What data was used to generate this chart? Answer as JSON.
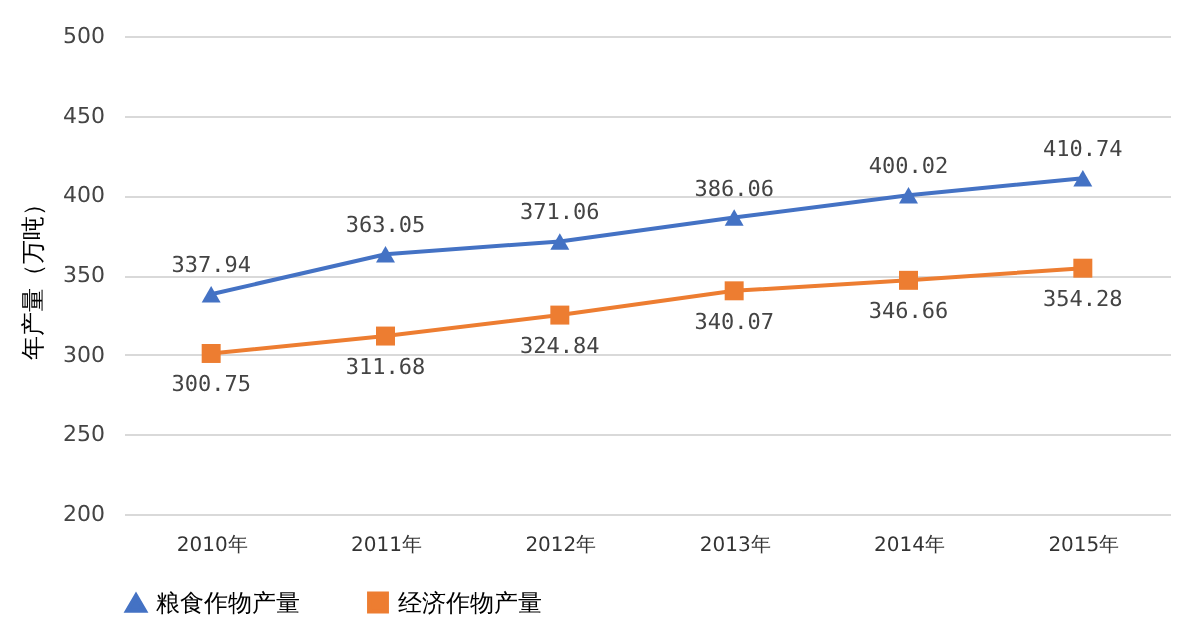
{
  "chart_data": {
    "type": "line",
    "ylabel": "年产量（万吨）",
    "categories": [
      "2010年",
      "2011年",
      "2012年",
      "2013年",
      "2014年",
      "2015年"
    ],
    "series": [
      {
        "name": "粮食作物产量",
        "color": "#4472c4",
        "marker": "triangle",
        "values": [
          337.94,
          363.05,
          371.06,
          386.06,
          400.02,
          410.74
        ]
      },
      {
        "name": "经济作物产量",
        "color": "#ed7d31",
        "marker": "square",
        "values": [
          300.75,
          311.68,
          324.84,
          340.07,
          346.66,
          354.28
        ]
      }
    ],
    "ylim": [
      200,
      500
    ],
    "yticks": [
      200,
      250,
      300,
      350,
      400,
      450,
      500
    ],
    "grid": "y",
    "legend": "bottom",
    "data_labels": true
  }
}
